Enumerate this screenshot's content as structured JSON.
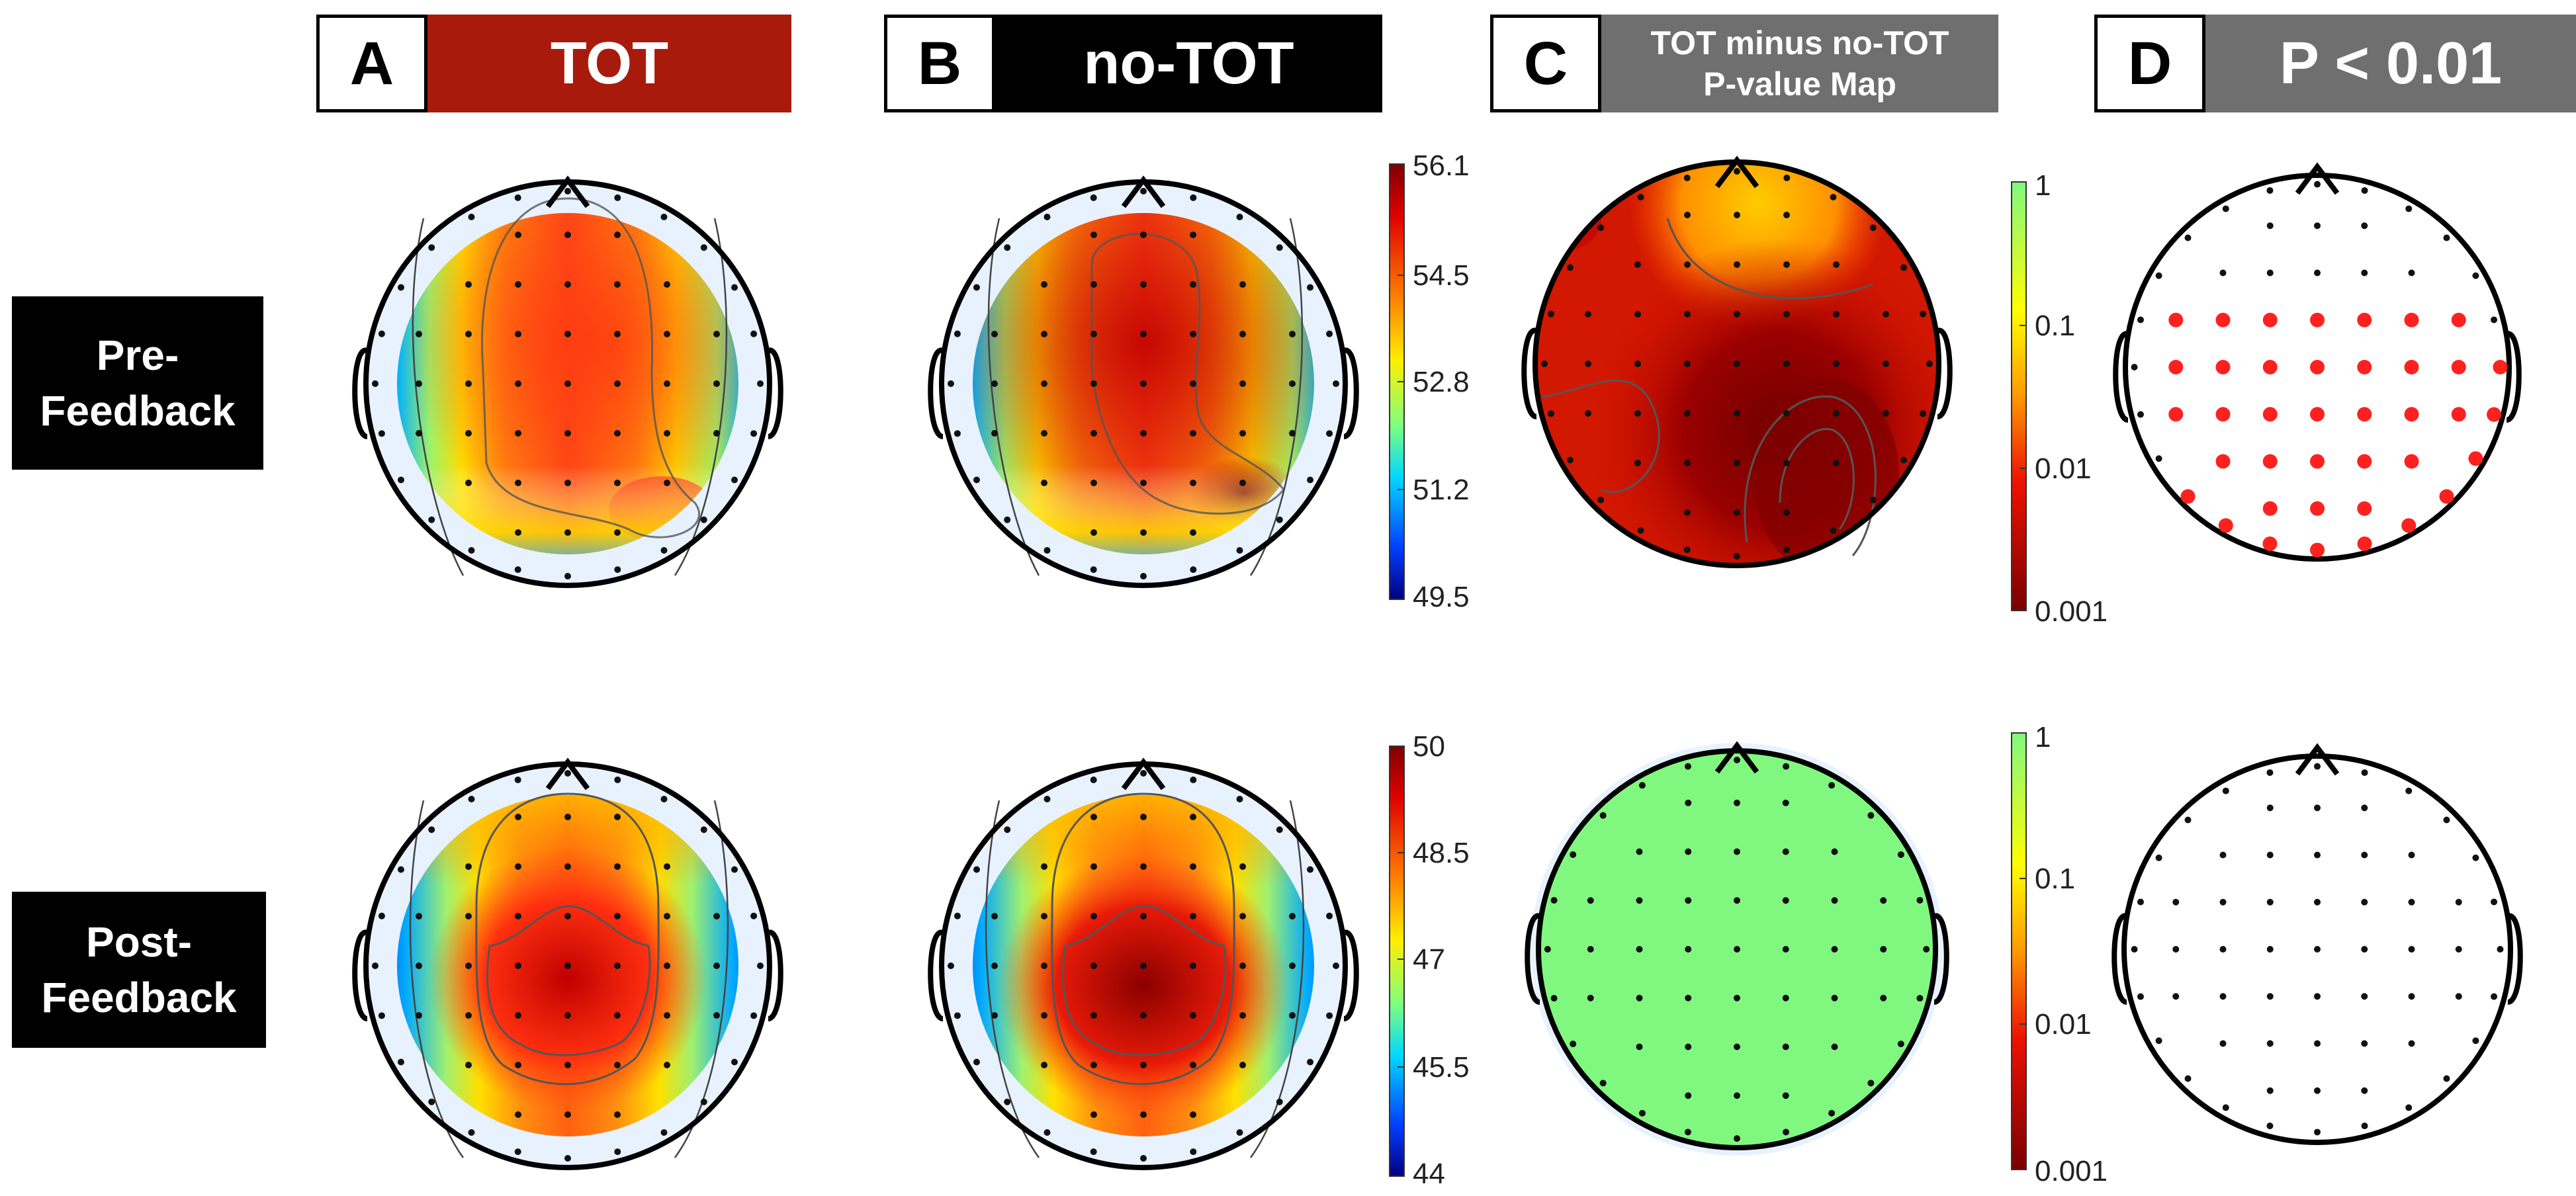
{
  "panels": [
    {
      "letter": "A",
      "title": "TOT",
      "color": "#a81b0c"
    },
    {
      "letter": "B",
      "title": "no-TOT",
      "color": "#000000"
    },
    {
      "letter": "C",
      "title_line1": "TOT minus no-TOT",
      "title_line2": "P-value Map",
      "color": "#6f6f6f"
    },
    {
      "letter": "D",
      "title": "P < 0.01",
      "color": "#6f6f6f"
    }
  ],
  "rows": [
    {
      "line1": "Pre-",
      "line2": "Feedback"
    },
    {
      "line1": "Post-",
      "line2": "Feedback"
    }
  ],
  "colorbars": {
    "pre_amplitude": [
      "56.1",
      "54.5",
      "52.8",
      "51.2",
      "49.5"
    ],
    "post_amplitude": [
      "50",
      "48.5",
      "47",
      "45.5",
      "44"
    ],
    "pvalue_pre": [
      "1",
      "0.1",
      "0.01",
      "0.001"
    ],
    "pvalue_post": [
      "1",
      "0.1",
      "0.01",
      "0.001"
    ]
  },
  "colors": {
    "significant_electrode": "#ff2020",
    "nonsignificant_pmap": "#80f880"
  }
}
